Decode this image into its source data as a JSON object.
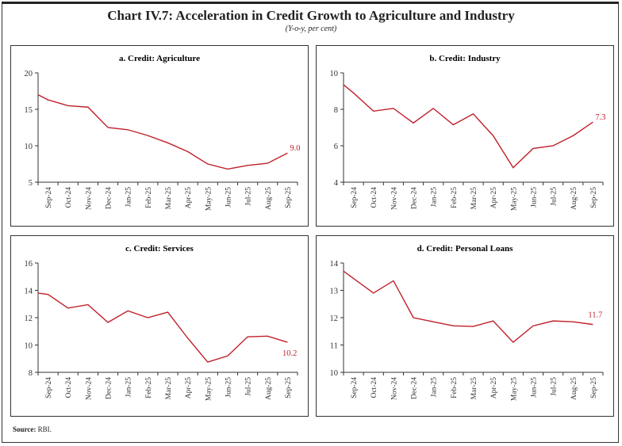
{
  "title": "Chart IV.7: Acceleration in Credit Growth to Agriculture and Industry",
  "subtitle": "(Y-o-y, per cent)",
  "source_label": "Source:",
  "source_value": "RBI.",
  "line_color": "#c0202a",
  "chart_data": [
    {
      "type": "line",
      "title": "a. Credit: Agriculture",
      "categories": [
        "Sep-24",
        "Oct-24",
        "Nov-24",
        "Dec-24",
        "Jan-25",
        "Feb-25",
        "Mar-25",
        "Apr-25",
        "May-25",
        "Jun-25",
        "Jul-25",
        "Aug-25",
        "Sep-25"
      ],
      "start_value": 17.0,
      "values": [
        16.3,
        15.5,
        15.3,
        12.5,
        12.2,
        11.4,
        10.4,
        9.2,
        7.5,
        6.8,
        7.3,
        7.6,
        9.0
      ],
      "ylim": [
        5,
        20
      ],
      "yticks": [
        5,
        10,
        15,
        20
      ],
      "end_label": "9.0",
      "grid": false
    },
    {
      "type": "line",
      "title": "b. Credit: Industry",
      "categories": [
        "Sep-24",
        "Oct-24",
        "Nov-24",
        "Dec-24",
        "Jan-25",
        "Feb-25",
        "Mar-25",
        "Apr-25",
        "May-25",
        "Jun-25",
        "Jul-25",
        "Aug-25",
        "Sep-25"
      ],
      "start_value": 9.35,
      "values": [
        8.9,
        7.9,
        8.05,
        7.25,
        8.05,
        7.15,
        7.75,
        6.55,
        4.8,
        5.85,
        6.0,
        6.55,
        7.3
      ],
      "ylim": [
        4,
        10
      ],
      "yticks": [
        4,
        6,
        8,
        10
      ],
      "end_label": "7.3",
      "grid": false
    },
    {
      "type": "line",
      "title": "c. Credit: Services",
      "categories": [
        "Sep-24",
        "Oct-24",
        "Nov-24",
        "Dec-24",
        "Jan-25",
        "Feb-25",
        "Mar-25",
        "Apr-25",
        "May-25",
        "Jun-25",
        "Jul-25",
        "Aug-25",
        "Sep-25"
      ],
      "start_value": 13.8,
      "values": [
        13.7,
        12.7,
        12.95,
        11.65,
        12.5,
        12.0,
        12.4,
        10.5,
        8.75,
        9.2,
        10.6,
        10.65,
        10.2
      ],
      "ylim": [
        8,
        16
      ],
      "yticks": [
        8,
        10,
        12,
        14,
        16
      ],
      "end_label": "10.2",
      "grid": false
    },
    {
      "type": "line",
      "title": "d. Credit: Personal Loans",
      "categories": [
        "Sep-24",
        "Oct-24",
        "Nov-24",
        "Dec-24",
        "Jan-25",
        "Feb-25",
        "Mar-25",
        "Apr-25",
        "May-25",
        "Jun-25",
        "Jul-25",
        "Aug-25",
        "Sep-25"
      ],
      "start_value": 13.7,
      "values": [
        null,
        12.9,
        13.35,
        12.0,
        11.85,
        11.7,
        11.68,
        11.88,
        11.1,
        11.7,
        11.88,
        11.85,
        11.75
      ],
      "ylim": [
        10,
        14
      ],
      "yticks": [
        10,
        11,
        12,
        13,
        14
      ],
      "end_label": "11.7",
      "grid": false
    }
  ]
}
